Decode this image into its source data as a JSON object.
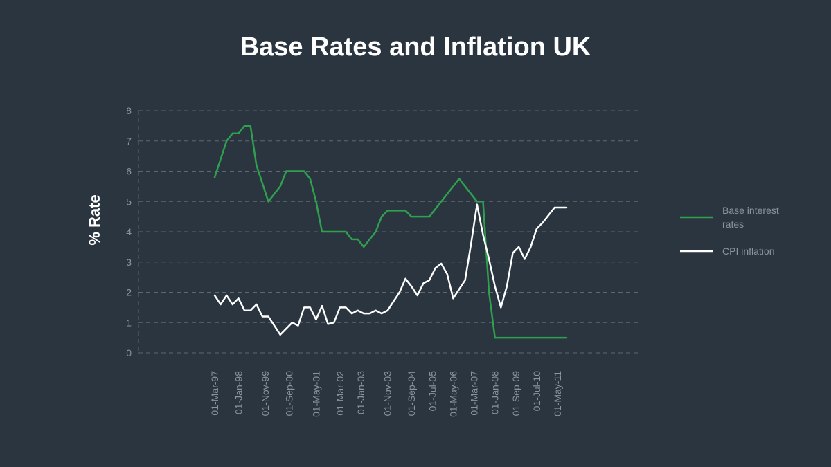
{
  "chart_data": {
    "type": "line",
    "title": "Base Rates and Inflation UK",
    "xlabel": "",
    "ylabel": "% Rate",
    "ylim": [
      0,
      8
    ],
    "yticks": [
      0,
      1,
      2,
      3,
      4,
      5,
      6,
      7,
      8
    ],
    "grid": true,
    "legend_position": "right",
    "categories": [
      "01-Mar-97",
      "01-Jan-98",
      "01-Nov-99",
      "01-Sep-00",
      "01-May-01",
      "01-Mar-02",
      "01-Jan-03",
      "01-Nov-03",
      "01-Sep-04",
      "01-Jul-05",
      "01-May-06",
      "01-Mar-07",
      "01-Jan-08",
      "01-Sep-09",
      "01-Jul-10",
      "01-May-11"
    ],
    "category_positions": [
      0,
      4,
      8.5,
      12.5,
      17,
      21,
      24.5,
      29,
      33,
      36.5,
      40,
      43.5,
      47,
      50.5,
      54,
      57.5
    ],
    "x_range": [
      0,
      59
    ],
    "series": [
      {
        "name": "Base interest rates",
        "color": "#2fa04f",
        "x": [
          0,
          1,
          2,
          3,
          4,
          5,
          6,
          7,
          8,
          9,
          10,
          11,
          12,
          13,
          14,
          15,
          16,
          17,
          18,
          19,
          20,
          21,
          22,
          23,
          24,
          25,
          26,
          27,
          28,
          29,
          30,
          31,
          32,
          33,
          34,
          35,
          36,
          37,
          38,
          39,
          40,
          41,
          42,
          43,
          44,
          45,
          46,
          47,
          48,
          49,
          50,
          51,
          52,
          53,
          54,
          55,
          56,
          57,
          58,
          59
        ],
        "values": [
          5.8,
          6.4,
          7.0,
          7.25,
          7.25,
          7.5,
          7.5,
          6.2,
          5.6,
          5.0,
          5.25,
          5.5,
          6.0,
          6.0,
          6.0,
          6.0,
          5.75,
          5.0,
          4.0,
          4.0,
          4.0,
          4.0,
          4.0,
          3.75,
          3.75,
          3.5,
          3.75,
          4.0,
          4.5,
          4.7,
          4.7,
          4.7,
          4.7,
          4.5,
          4.5,
          4.5,
          4.5,
          4.75,
          5.0,
          5.25,
          5.5,
          5.75,
          5.5,
          5.25,
          5.0,
          5.0,
          2.0,
          0.5,
          0.5,
          0.5,
          0.5,
          0.5,
          0.5,
          0.5,
          0.5,
          0.5,
          0.5,
          0.5,
          0.5,
          0.5
        ]
      },
      {
        "name": "CPI inflation",
        "color": "#ffffff",
        "x": [
          0,
          1,
          2,
          3,
          4,
          5,
          6,
          7,
          8,
          9,
          10,
          11,
          12,
          13,
          14,
          15,
          16,
          17,
          18,
          19,
          20,
          21,
          22,
          23,
          24,
          25,
          26,
          27,
          28,
          29,
          30,
          31,
          32,
          33,
          34,
          35,
          36,
          37,
          38,
          39,
          40,
          41,
          42,
          43,
          44,
          45,
          46,
          47,
          48,
          49,
          50,
          51,
          52,
          53,
          54,
          55,
          56,
          57,
          58,
          59
        ],
        "values": [
          1.9,
          1.6,
          1.9,
          1.6,
          1.8,
          1.4,
          1.4,
          1.6,
          1.2,
          1.2,
          0.9,
          0.6,
          0.8,
          1.0,
          0.9,
          1.5,
          1.5,
          1.1,
          1.55,
          0.95,
          1.0,
          1.5,
          1.5,
          1.3,
          1.4,
          1.3,
          1.3,
          1.4,
          1.3,
          1.4,
          1.7,
          2.0,
          2.45,
          2.2,
          1.9,
          2.3,
          2.4,
          2.8,
          2.95,
          2.6,
          1.8,
          2.1,
          2.4,
          3.6,
          4.9,
          3.9,
          3.1,
          2.2,
          1.5,
          2.2,
          3.3,
          3.5,
          3.1,
          3.5,
          4.1,
          4.3,
          4.55,
          4.8,
          4.8,
          4.8
        ]
      }
    ]
  }
}
